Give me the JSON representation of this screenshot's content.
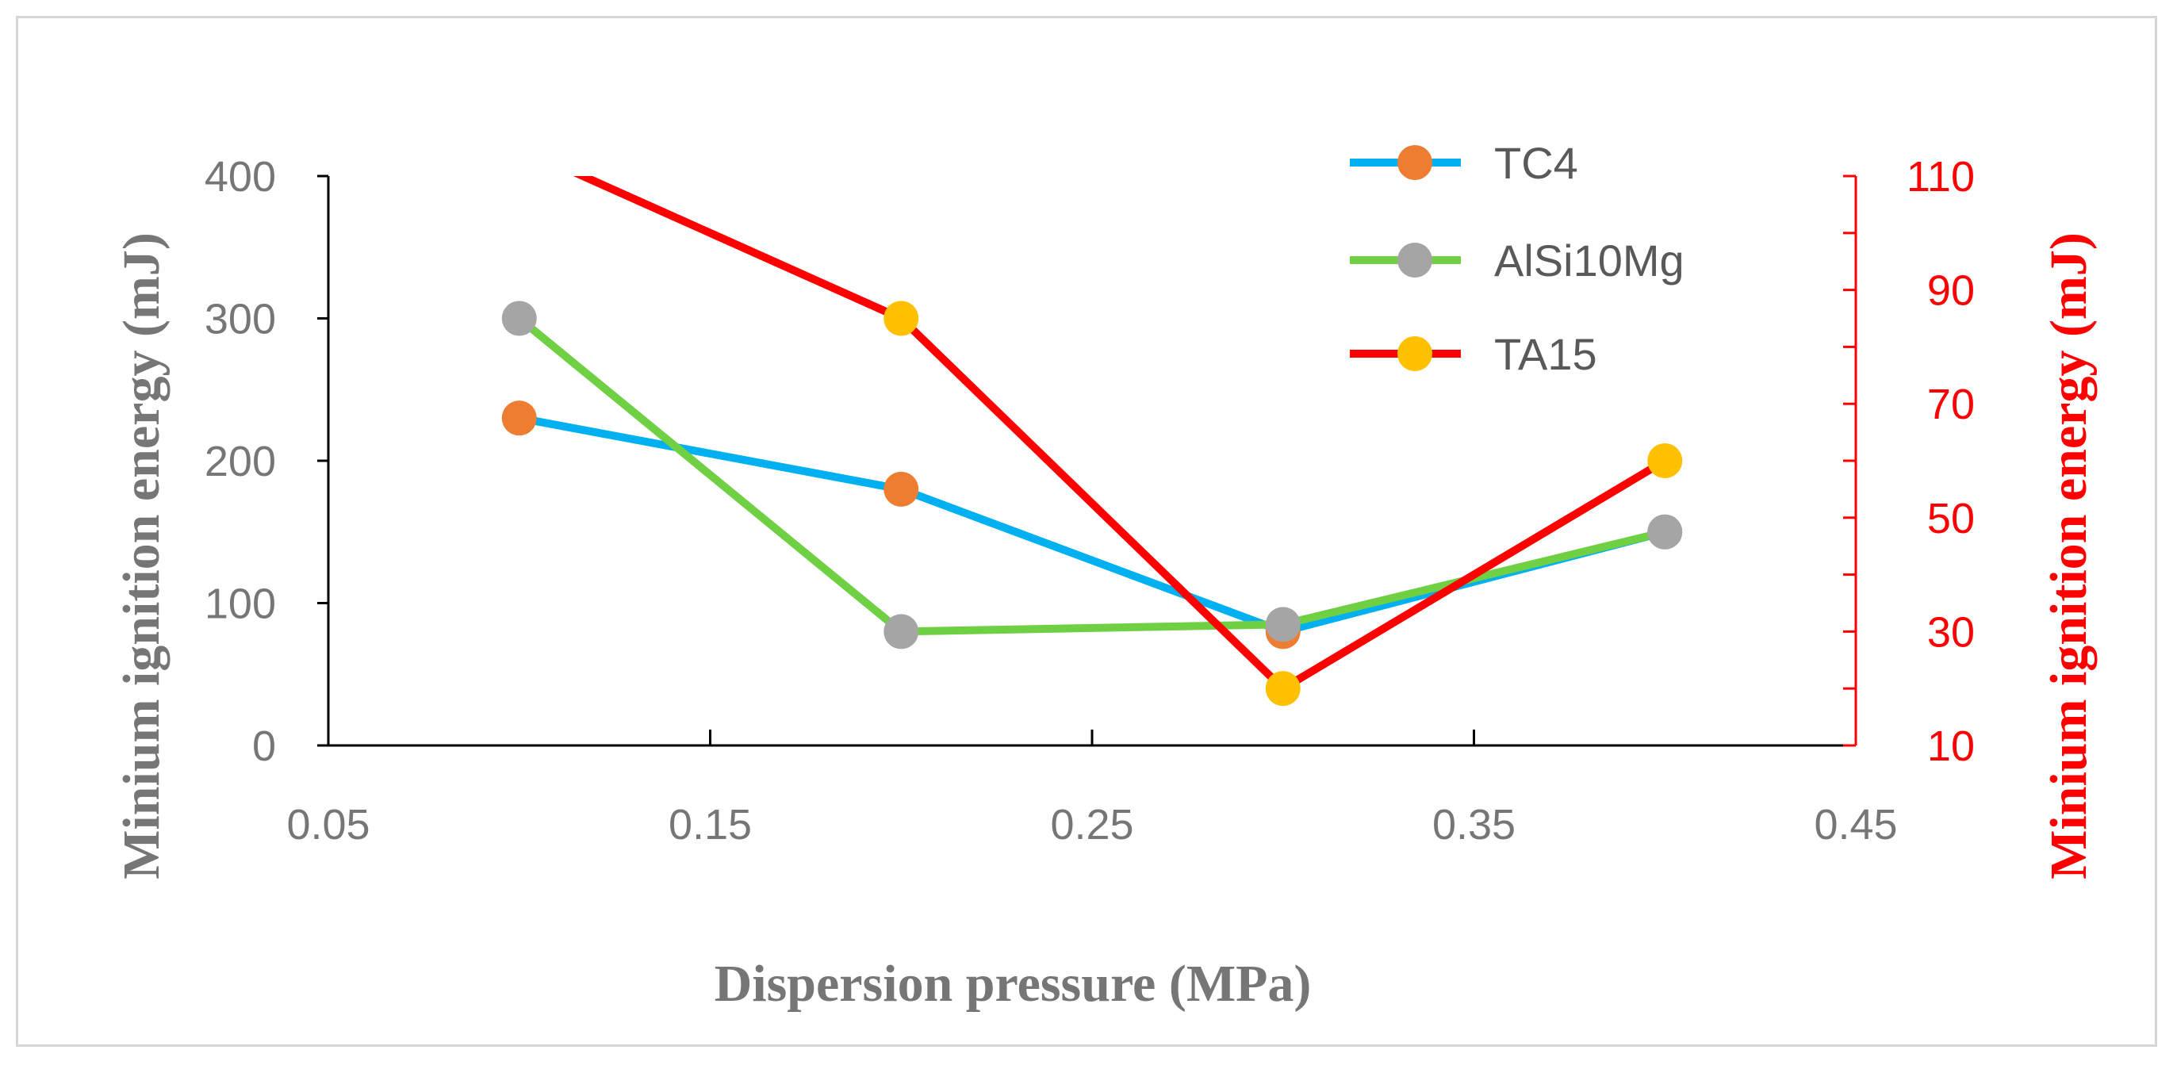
{
  "chart_data": {
    "type": "line",
    "xlabel": "Dispersion pressure (MPa)",
    "ylabel_left": "Minium ignition energy (mJ)",
    "ylabel_right": "Minium ignition energy (mJ)",
    "xlim": [
      0.05,
      0.45
    ],
    "ylim_left": [
      0,
      400
    ],
    "ylim_right": [
      10,
      110
    ],
    "x_ticks": [
      "0.05",
      "0.15",
      "0.25",
      "0.35",
      "0.45"
    ],
    "y_ticks_left": [
      "0",
      "100",
      "200",
      "300",
      "400"
    ],
    "y_ticks_right": [
      "10",
      "30",
      "50",
      "70",
      "90",
      "110"
    ],
    "legend_position": "top-right",
    "grid": false,
    "series": [
      {
        "name": "TC4",
        "axis": "left",
        "line_color": "#00b0f0",
        "marker_color": "#ed7d31",
        "x": [
          0.1,
          0.2,
          0.3,
          0.4
        ],
        "y": [
          230,
          180,
          80,
          150
        ]
      },
      {
        "name": "AlSi10Mg",
        "axis": "left",
        "line_color": "#70d044",
        "marker_color": "#a5a5a5",
        "x": [
          0.1,
          0.2,
          0.3,
          0.4
        ],
        "y": [
          300,
          80,
          85,
          150
        ]
      },
      {
        "name": "TA15",
        "axis": "right",
        "line_color": "#ff0000",
        "marker_color": "#ffc000",
        "x": [
          0.1,
          0.2,
          0.3,
          0.4
        ],
        "y": [
          115,
          85,
          20,
          60
        ]
      }
    ],
    "colors": {
      "left_axis": "#767676",
      "right_axis": "#ff0000",
      "xlabel": "#767676"
    }
  }
}
